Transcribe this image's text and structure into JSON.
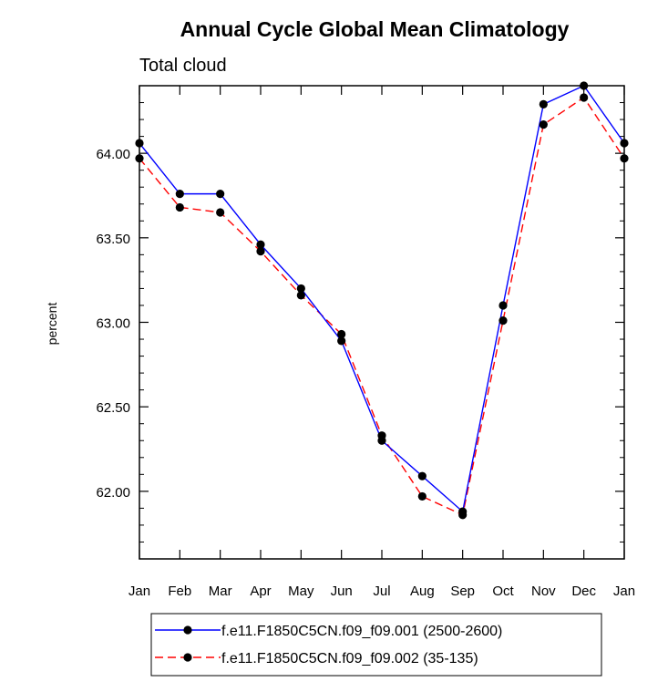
{
  "chart_data": {
    "type": "line",
    "title": "Annual Cycle Global Mean Climatology",
    "subtitle": "Total cloud",
    "xlabel": "",
    "ylabel": "percent",
    "categories": [
      "Jan",
      "Feb",
      "Mar",
      "Apr",
      "May",
      "Jun",
      "Jul",
      "Aug",
      "Sep",
      "Oct",
      "Nov",
      "Dec",
      "Jan"
    ],
    "ylim": [
      61.6,
      64.4
    ],
    "yticks": [
      62.0,
      62.5,
      63.0,
      63.5,
      64.0
    ],
    "ytick_labels": [
      "62.00",
      "62.50",
      "63.00",
      "63.50",
      "64.00"
    ],
    "series": [
      {
        "name": "f.e11.F1850C5CN.f09_f09.001 (2500-2600)",
        "color": "#0000ff",
        "dash": "solid",
        "values": [
          64.06,
          63.76,
          63.76,
          63.46,
          63.2,
          62.89,
          62.3,
          62.09,
          61.88,
          63.1,
          64.29,
          64.4,
          64.06
        ]
      },
      {
        "name": "f.e11.F1850C5CN.f09_f09.002 (35-135)",
        "color": "#ff0000",
        "dash": "dashed",
        "values": [
          63.97,
          63.68,
          63.65,
          63.42,
          63.16,
          62.93,
          62.33,
          61.97,
          61.86,
          63.01,
          64.17,
          64.33,
          63.97
        ]
      }
    ],
    "legend": "bottom"
  }
}
